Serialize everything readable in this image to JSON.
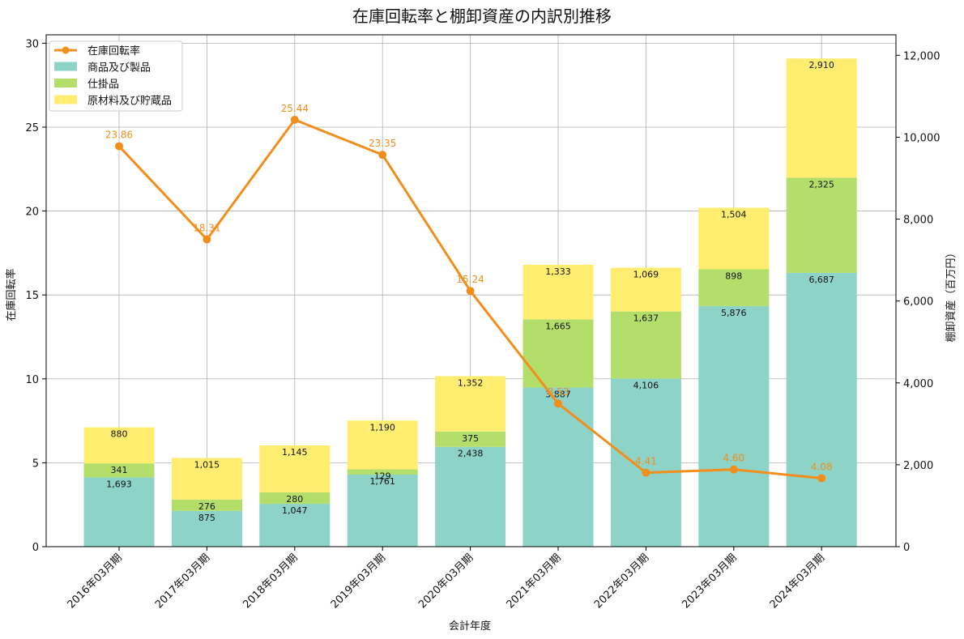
{
  "chart_data": {
    "type": "bar+line",
    "title": "在庫回転率と棚卸資産の内訳別推移",
    "xlabel": "会計年度",
    "ylabel_left": "在庫回転率",
    "ylabel_right": "棚卸資産（百万円）",
    "categories": [
      "2016年03月期",
      "2017年03月期",
      "2018年03月期",
      "2019年03月期",
      "2020年03月期",
      "2021年03月期",
      "2022年03月期",
      "2023年03月期",
      "2024年03月期"
    ],
    "bar_series": [
      {
        "name": "商品及び製品",
        "color": "#8dd3c7",
        "values": [
          1693,
          875,
          1047,
          1761,
          2438,
          3887,
          4106,
          5876,
          6687
        ],
        "labels": [
          "1,693",
          "875",
          "1,047",
          "1,761",
          "2,438",
          "3,887",
          "4,106",
          "5,876",
          "6,687"
        ]
      },
      {
        "name": "仕掛品",
        "color": "#b3de69",
        "values": [
          341,
          276,
          280,
          129,
          375,
          1665,
          1637,
          898,
          2325
        ],
        "labels": [
          "341",
          "276",
          "280",
          "129",
          "375",
          "1,665",
          "1,637",
          "898",
          "2,325"
        ]
      },
      {
        "name": "原材料及び貯蔵品",
        "color": "#ffed6f",
        "values": [
          880,
          1015,
          1145,
          1190,
          1352,
          1333,
          1069,
          1504,
          2910
        ],
        "labels": [
          "880",
          "1,015",
          "1,145",
          "1,190",
          "1,352",
          "1,333",
          "1,069",
          "1,504",
          "2,910"
        ]
      }
    ],
    "line_series": {
      "name": "在庫回転率",
      "color": "#f28e1c",
      "values": [
        23.86,
        18.31,
        25.44,
        23.35,
        15.24,
        8.53,
        4.41,
        4.6,
        4.08
      ],
      "labels": [
        "23.86",
        "18.31",
        "25.44",
        "23.35",
        "15.24",
        "8.53",
        "4.41",
        "4.60",
        "4.08"
      ]
    },
    "ylim_left": [
      0,
      30.5
    ],
    "ylim_right": [
      0,
      12500
    ],
    "yticks_left": [
      0,
      5,
      10,
      15,
      20,
      25,
      30
    ],
    "yticks_right": [
      0,
      2000,
      4000,
      6000,
      8000,
      10000,
      12000
    ],
    "yticklabels_right": [
      "0",
      "2,000",
      "4,000",
      "6,000",
      "8,000",
      "10,000",
      "12,000"
    ],
    "grid": true,
    "legend_position": "top-left"
  }
}
